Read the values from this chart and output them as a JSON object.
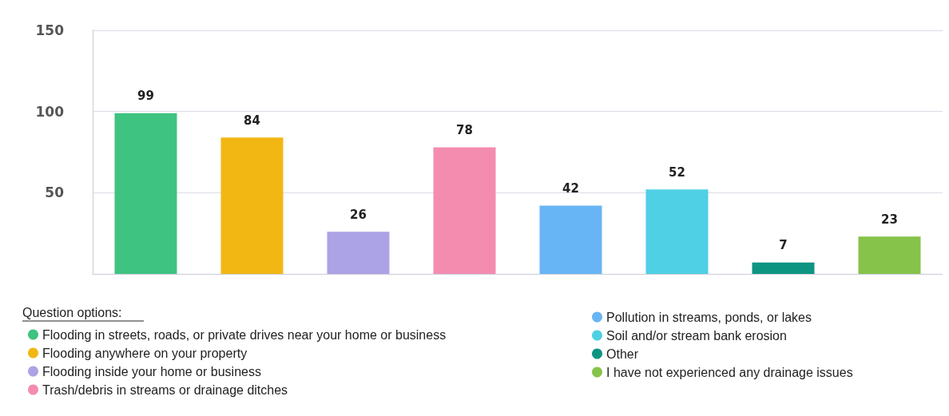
{
  "chart_data": {
    "type": "bar",
    "legend_title": "Question options:",
    "categories": [
      null,
      null,
      null,
      null,
      null,
      null,
      null,
      null
    ],
    "series": [
      {
        "name": "Flooding in streets, roads, or private drives near your home or business",
        "color": "#3fc380",
        "values": [
          99,
          null,
          null,
          null,
          null,
          null,
          null,
          null
        ]
      },
      {
        "name": "Flooding anywhere on your property",
        "color": "#f2b713",
        "values": [
          null,
          84,
          null,
          null,
          null,
          null,
          null,
          null
        ]
      },
      {
        "name": "Flooding inside your home or business",
        "color": "#aca2e6",
        "values": [
          null,
          null,
          26,
          null,
          null,
          null,
          null,
          null
        ]
      },
      {
        "name": "Trash/debris in streams or drainage ditches",
        "color": "#f48cb0",
        "values": [
          null,
          null,
          null,
          78,
          null,
          null,
          null,
          null
        ]
      },
      {
        "name": "Pollution in streams, ponds, or lakes",
        "color": "#68b5f5",
        "values": [
          null,
          null,
          null,
          null,
          42,
          null,
          null,
          null
        ]
      },
      {
        "name": "Soil and/or stream bank erosion",
        "color": "#4fd0e4",
        "values": [
          null,
          null,
          null,
          null,
          null,
          52,
          null,
          null
        ]
      },
      {
        "name": "Other",
        "color": "#0e9582",
        "values": [
          null,
          null,
          null,
          null,
          null,
          null,
          7,
          null
        ]
      },
      {
        "name": "I have not experienced any drainage issues",
        "color": "#86c34a",
        "values": [
          null,
          null,
          null,
          null,
          null,
          null,
          null,
          23
        ]
      }
    ],
    "ylim": [
      0,
      150
    ],
    "yticks": [
      50,
      100,
      150
    ],
    "grid": "y",
    "data_labels": true,
    "legend": "bottom"
  }
}
